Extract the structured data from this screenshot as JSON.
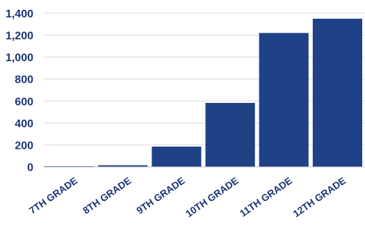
{
  "chart_data": {
    "type": "bar",
    "title": "",
    "xlabel": "",
    "ylabel": "",
    "categories": [
      "7TH GRADE",
      "8TH GRADE",
      "9TH GRADE",
      "10TH GRADE",
      "11TH GRADE",
      "12TH GRADE"
    ],
    "values": [
      3,
      15,
      185,
      583,
      1220,
      1350
    ],
    "ylim": [
      0,
      1400
    ],
    "yticks": [
      0,
      200,
      400,
      600,
      800,
      1000,
      1200,
      1400
    ],
    "ytick_labels": [
      "0",
      "200",
      "400",
      "600",
      "800",
      "1,000",
      "1,200",
      "1,400"
    ],
    "grid": true,
    "legend": "none",
    "colors": {
      "bar": "#1f4287",
      "text": "#1b3576",
      "grid": "#d9d9d9",
      "axis": "#bfbfbf"
    }
  }
}
